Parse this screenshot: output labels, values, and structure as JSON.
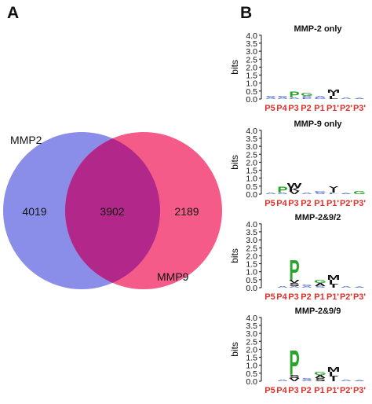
{
  "panel_a": {
    "letter": "A",
    "set1_name": "MMP2",
    "set2_name": "MMP9",
    "only1_count": "4019",
    "intersection_count": "3902",
    "only2_count": "2189",
    "colors": {
      "set1": "#8a8ee9",
      "set2": "#f55b88",
      "overlap": "#b2288a"
    }
  },
  "panel_b": {
    "letter": "B",
    "y_axis_label": "bits",
    "y_ticks": [
      "4.0",
      "3.5",
      "3.0",
      "2.5",
      "2.0",
      "1.5",
      "1.0",
      "0.5",
      "0.0"
    ],
    "positions": [
      "P5",
      "P4",
      "P3",
      "P2",
      "P1",
      "P1'",
      "P2'",
      "P3'"
    ],
    "colors": {
      "position_label": "#e0302a",
      "P": "#2aa42a",
      "G": "#2aa42a",
      "E": "#2aa42a",
      "other": "#111111",
      "small": "#5b75c8"
    },
    "logos": [
      {
        "title": "MMP-2 only",
        "columns": [
          {
            "stack": [
              {
                "letter": "A",
                "bits": 0.1
              },
              {
                "letter": "S",
                "bits": 0.1
              }
            ]
          },
          {
            "stack": [
              {
                "letter": "A",
                "bits": 0.1
              },
              {
                "letter": "S",
                "bits": 0.1
              }
            ]
          },
          {
            "stack": [
              {
                "letter": "A",
                "bits": 0.1
              },
              {
                "letter": "P",
                "bits": 0.4
              }
            ]
          },
          {
            "stack": [
              {
                "letter": "E",
                "bits": 0.1
              },
              {
                "letter": "S",
                "bits": 0.1
              },
              {
                "letter": "G",
                "bits": 0.2
              }
            ]
          },
          {
            "stack": [
              {
                "letter": "G",
                "bits": 0.1
              },
              {
                "letter": "A",
                "bits": 0.1
              }
            ]
          },
          {
            "stack": [
              {
                "letter": "L",
                "bits": 0.2
              },
              {
                "letter": "I",
                "bits": 0.2
              },
              {
                "letter": "M",
                "bits": 0.2
              }
            ]
          },
          {
            "stack": [
              {
                "letter": "A",
                "bits": 0.1
              }
            ]
          },
          {
            "stack": [
              {
                "letter": "A",
                "bits": 0.05
              }
            ]
          }
        ]
      },
      {
        "title": "MMP-9 only",
        "columns": [
          {
            "stack": [
              {
                "letter": "A",
                "bits": 0.1
              }
            ]
          },
          {
            "stack": [
              {
                "letter": "A",
                "bits": 0.1
              },
              {
                "letter": "P",
                "bits": 0.4
              }
            ]
          },
          {
            "stack": [
              {
                "letter": "V",
                "bits": 0.2
              },
              {
                "letter": "K",
                "bits": 0.2
              },
              {
                "letter": "W",
                "bits": 0.3
              }
            ]
          },
          {
            "stack": [
              {
                "letter": "A",
                "bits": 0.1
              }
            ]
          },
          {
            "stack": [
              {
                "letter": "S",
                "bits": 0.1
              },
              {
                "letter": "G",
                "bits": 0.1
              }
            ]
          },
          {
            "stack": [
              {
                "letter": "L",
                "bits": 0.1
              },
              {
                "letter": "I",
                "bits": 0.2
              },
              {
                "letter": "Y",
                "bits": 0.2
              }
            ]
          },
          {
            "stack": [
              {
                "letter": "A",
                "bits": 0.05
              }
            ]
          },
          {
            "stack": [
              {
                "letter": "G",
                "bits": 0.2
              }
            ]
          }
        ]
      },
      {
        "title": "MMP-2&9/2",
        "columns": [
          {
            "stack": []
          },
          {
            "stack": [
              {
                "letter": "A",
                "bits": 0.1
              }
            ]
          },
          {
            "stack": [
              {
                "letter": "A",
                "bits": 0.1
              },
              {
                "letter": "S",
                "bits": 0.2
              },
              {
                "letter": "V",
                "bits": 0.2
              },
              {
                "letter": "P",
                "bits": 1.3
              }
            ]
          },
          {
            "stack": [
              {
                "letter": "A",
                "bits": 0.1
              },
              {
                "letter": "S",
                "bits": 0.1
              }
            ]
          },
          {
            "stack": [
              {
                "letter": "S",
                "bits": 0.1
              },
              {
                "letter": "A",
                "bits": 0.2
              },
              {
                "letter": "G",
                "bits": 0.2
              }
            ]
          },
          {
            "stack": [
              {
                "letter": "I",
                "bits": 0.2
              },
              {
                "letter": "L",
                "bits": 0.3
              },
              {
                "letter": "M",
                "bits": 0.3
              }
            ]
          },
          {
            "stack": [
              {
                "letter": "A",
                "bits": 0.1
              }
            ]
          },
          {
            "stack": [
              {
                "letter": "A",
                "bits": 0.05
              }
            ]
          }
        ]
      },
      {
        "title": "MMP-2&9/9",
        "columns": [
          {
            "stack": []
          },
          {
            "stack": [
              {
                "letter": "A",
                "bits": 0.1
              }
            ]
          },
          {
            "stack": [
              {
                "letter": "V",
                "bits": 0.2
              },
              {
                "letter": "S",
                "bits": 0.2
              },
              {
                "letter": "P",
                "bits": 1.6
              }
            ]
          },
          {
            "stack": [
              {
                "letter": "A",
                "bits": 0.1
              },
              {
                "letter": "S",
                "bits": 0.1
              }
            ]
          },
          {
            "stack": [
              {
                "letter": "S",
                "bits": 0.2
              },
              {
                "letter": "A",
                "bits": 0.2
              },
              {
                "letter": "G",
                "bits": 0.2
              }
            ]
          },
          {
            "stack": [
              {
                "letter": "I",
                "bits": 0.3
              },
              {
                "letter": "L",
                "bits": 0.3
              },
              {
                "letter": "M",
                "bits": 0.3
              }
            ]
          },
          {
            "stack": [
              {
                "letter": "A",
                "bits": 0.1
              }
            ]
          },
          {
            "stack": [
              {
                "letter": "A",
                "bits": 0.05
              }
            ]
          }
        ]
      }
    ]
  }
}
